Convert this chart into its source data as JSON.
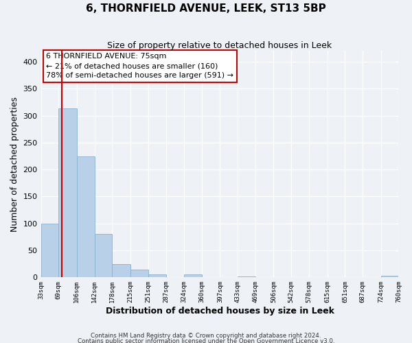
{
  "title": "6, THORNFIELD AVENUE, LEEK, ST13 5BP",
  "subtitle": "Size of property relative to detached houses in Leek",
  "xlabel": "Distribution of detached houses by size in Leek",
  "ylabel": "Number of detached properties",
  "bin_edges": [
    33,
    69,
    106,
    142,
    178,
    215,
    251,
    287,
    324,
    360,
    397,
    433,
    469,
    506,
    542,
    578,
    615,
    651,
    687,
    724,
    760
  ],
  "bar_heights": [
    100,
    313,
    224,
    81,
    25,
    14,
    5,
    0,
    6,
    0,
    0,
    2,
    0,
    0,
    0,
    0,
    0,
    0,
    0,
    3
  ],
  "bar_color": "#b8d0e8",
  "bar_edge_color": "#8ab0cc",
  "tick_labels": [
    "33sqm",
    "69sqm",
    "106sqm",
    "142sqm",
    "178sqm",
    "215sqm",
    "251sqm",
    "287sqm",
    "324sqm",
    "360sqm",
    "397sqm",
    "433sqm",
    "469sqm",
    "506sqm",
    "542sqm",
    "578sqm",
    "615sqm",
    "651sqm",
    "687sqm",
    "724sqm",
    "760sqm"
  ],
  "ylim": [
    0,
    420
  ],
  "yticks": [
    0,
    50,
    100,
    150,
    200,
    250,
    300,
    350,
    400
  ],
  "vline_x": 75,
  "vline_color": "#cc0000",
  "annotation_title": "6 THORNFIELD AVENUE: 75sqm",
  "annotation_line1": "← 21% of detached houses are smaller (160)",
  "annotation_line2": "78% of semi-detached houses are larger (591) →",
  "annotation_box_color": "#ffffff",
  "annotation_box_edge": "#cc0000",
  "background_color": "#eef2f7",
  "footer1": "Contains HM Land Registry data © Crown copyright and database right 2024.",
  "footer2": "Contains public sector information licensed under the Open Government Licence v3.0."
}
